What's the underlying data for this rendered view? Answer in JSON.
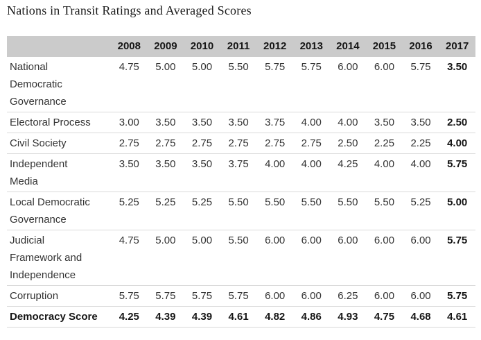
{
  "title": "Nations in Transit Ratings and Averaged Scores",
  "chart_data": {
    "type": "table",
    "columns": [
      "2008",
      "2009",
      "2010",
      "2011",
      "2012",
      "2013",
      "2014",
      "2015",
      "2016",
      "2017"
    ],
    "bold_column": "2017",
    "rows": [
      {
        "label": "National Democratic Governance",
        "values": [
          "4.75",
          "5.00",
          "5.00",
          "5.50",
          "5.75",
          "5.75",
          "6.00",
          "6.00",
          "5.75",
          "3.50"
        ]
      },
      {
        "label": "Electoral Process",
        "values": [
          "3.00",
          "3.50",
          "3.50",
          "3.50",
          "3.75",
          "4.00",
          "4.00",
          "3.50",
          "3.50",
          "2.50"
        ]
      },
      {
        "label": "Civil Society",
        "values": [
          "2.75",
          "2.75",
          "2.75",
          "2.75",
          "2.75",
          "2.75",
          "2.50",
          "2.25",
          "2.25",
          "4.00"
        ]
      },
      {
        "label": "Independent Media",
        "values": [
          "3.50",
          "3.50",
          "3.50",
          "3.75",
          "4.00",
          "4.00",
          "4.25",
          "4.00",
          "4.00",
          "5.75"
        ]
      },
      {
        "label": "Local Democratic Governance",
        "values": [
          "5.25",
          "5.25",
          "5.25",
          "5.50",
          "5.50",
          "5.50",
          "5.50",
          "5.50",
          "5.25",
          "5.00"
        ]
      },
      {
        "label": "Judicial Framework and Independence",
        "values": [
          "4.75",
          "5.00",
          "5.00",
          "5.50",
          "6.00",
          "6.00",
          "6.00",
          "6.00",
          "6.00",
          "5.75"
        ]
      },
      {
        "label": "Corruption",
        "values": [
          "5.75",
          "5.75",
          "5.75",
          "5.75",
          "6.00",
          "6.00",
          "6.25",
          "6.00",
          "6.00",
          "5.75"
        ]
      },
      {
        "label": "Democracy Score",
        "bold": true,
        "values": [
          "4.25",
          "4.39",
          "4.39",
          "4.61",
          "4.82",
          "4.86",
          "4.93",
          "4.75",
          "4.68",
          "4.61"
        ]
      }
    ]
  },
  "colors": {
    "header_bg": "#cbcbcb",
    "border": "#d9d9d9",
    "text": "#333333",
    "emphasis": "#151515",
    "title": "#1c1c1c"
  }
}
